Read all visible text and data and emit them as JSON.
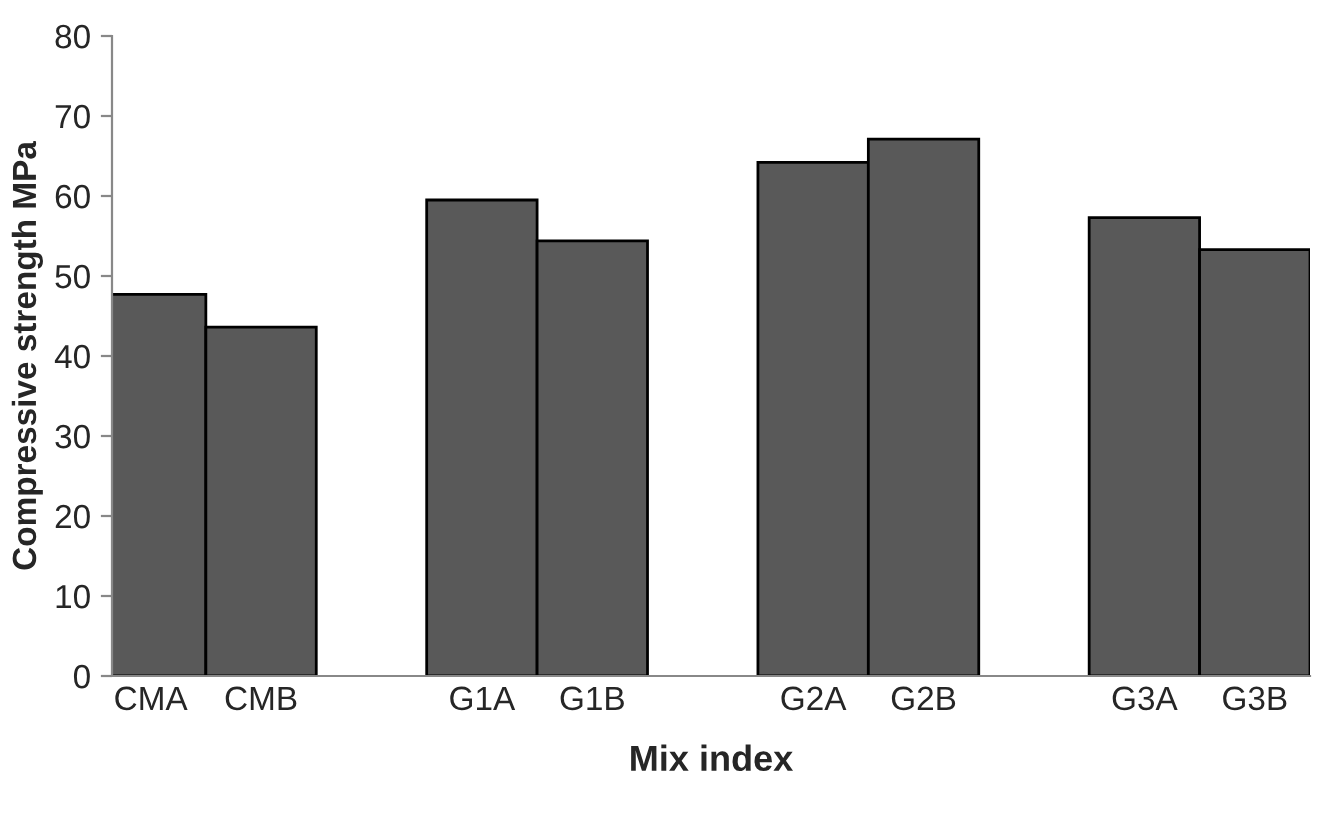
{
  "chart_data": {
    "type": "bar",
    "xlabel": "Mix index",
    "ylabel": "Compressive strength MPa",
    "categories": [
      "CMA",
      "CMB",
      null,
      "G1A",
      "G1B",
      null,
      "G2A",
      "G2B",
      null,
      "G3A",
      "G3B"
    ],
    "values": [
      47.7,
      43.6,
      null,
      59.5,
      54.4,
      null,
      64.2,
      67.1,
      null,
      57.3,
      53.3
    ],
    "color": "#595959",
    "ylim": [
      0,
      80
    ],
    "yticks": [
      0,
      10,
      20,
      30,
      40,
      50,
      60,
      70,
      80
    ],
    "grid": false,
    "legend": false
  }
}
